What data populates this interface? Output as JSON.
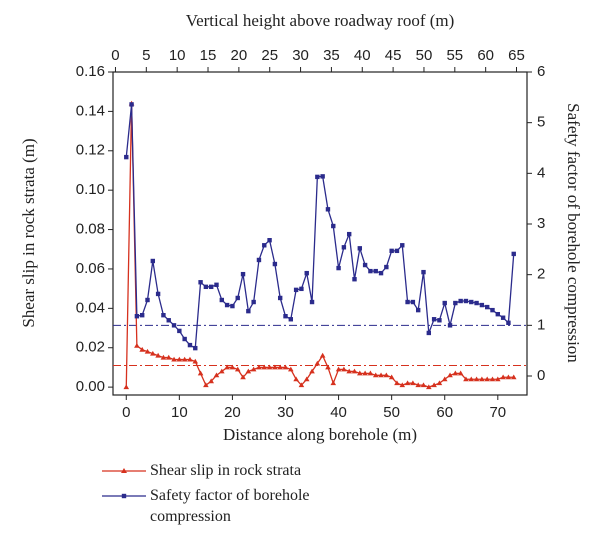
{
  "chart_data": {
    "type": "line",
    "xlabel": "Distance along borehole (m)",
    "x2label": "Vertical height above roadway roof (m)",
    "ylabel": "Shear slip in rock strata (m)",
    "y2label": "Safety factor of borehole compression",
    "xlim": [
      -2.5,
      75.5
    ],
    "xticks": [
      0,
      10,
      20,
      30,
      40,
      50,
      60,
      70
    ],
    "x2lim": [
      -0.4,
      66.7
    ],
    "x2ticks": [
      0,
      5,
      10,
      15,
      20,
      25,
      30,
      35,
      40,
      45,
      50,
      55,
      60,
      65
    ],
    "ylim": [
      -0.004,
      0.16
    ],
    "yticks": [
      {
        "value": 0,
        "label": "0.00"
      },
      0.02,
      0.04,
      0.06,
      0.08,
      {
        "value": 0.1,
        "label": "0.10"
      },
      0.12,
      0.14,
      0.16
    ],
    "y2lim": [
      -0.375,
      6
    ],
    "y2ticks": [
      0,
      1,
      2,
      3,
      4,
      5,
      6
    ],
    "x": [
      0,
      1,
      2,
      3,
      4,
      5,
      6,
      7,
      8,
      9,
      10,
      11,
      12,
      13,
      14,
      15,
      16,
      17,
      18,
      19,
      20,
      21,
      22,
      23,
      24,
      25,
      26,
      27,
      28,
      29,
      30,
      31,
      32,
      33,
      34,
      35,
      36,
      37,
      38,
      39,
      40,
      41,
      42,
      43,
      44,
      45,
      46,
      47,
      48,
      49,
      50,
      51,
      52,
      53,
      54,
      55,
      56,
      57,
      58,
      59,
      60,
      61,
      62,
      63,
      64,
      65,
      66,
      67,
      68,
      69,
      70,
      71,
      72,
      73
    ],
    "series": [
      {
        "name": "Shear slip in rock strata",
        "color": "#d6311e",
        "marker": "triangle",
        "values": [
          0.0,
          0.144,
          0.021,
          0.019,
          0.018,
          0.017,
          0.016,
          0.015,
          0.015,
          0.014,
          0.014,
          0.014,
          0.014,
          0.013,
          0.007,
          0.001,
          0.003,
          0.006,
          0.008,
          0.01,
          0.01,
          0.009,
          0.005,
          0.008,
          0.009,
          0.01,
          0.01,
          0.01,
          0.01,
          0.01,
          0.01,
          0.009,
          0.004,
          0.001,
          0.004,
          0.008,
          0.012,
          0.016,
          0.01,
          0.002,
          0.009,
          0.009,
          0.008,
          0.008,
          0.007,
          0.007,
          0.007,
          0.006,
          0.006,
          0.006,
          0.005,
          0.002,
          0.001,
          0.002,
          0.002,
          0.001,
          0.001,
          0.0,
          0.001,
          0.002,
          0.004,
          0.006,
          0.007,
          0.007,
          0.004,
          0.004,
          0.004,
          0.004,
          0.004,
          0.004,
          0.004,
          0.005,
          0.005,
          0.005
        ]
      },
      {
        "name": "Safety factor of borehole compression",
        "color": "#2b2b8c",
        "marker": "square",
        "axis": "y2",
        "values": [
          4.32,
          5.36,
          1.18,
          1.2,
          1.5,
          2.27,
          1.62,
          1.2,
          1.1,
          1.0,
          0.89,
          0.73,
          0.61,
          0.55,
          1.85,
          1.76,
          1.76,
          1.8,
          1.5,
          1.4,
          1.38,
          1.54,
          2.01,
          1.28,
          1.46,
          2.29,
          2.58,
          2.68,
          2.21,
          1.54,
          1.18,
          1.12,
          1.7,
          1.72,
          2.03,
          1.46,
          3.93,
          3.94,
          3.29,
          2.96,
          2.13,
          2.54,
          2.8,
          1.91,
          2.52,
          2.19,
          2.07,
          2.07,
          2.03,
          2.15,
          2.47,
          2.47,
          2.58,
          1.46,
          1.46,
          1.3,
          2.05,
          0.85,
          1.12,
          1.1,
          1.44,
          1.0,
          1.44,
          1.48,
          1.48,
          1.46,
          1.44,
          1.4,
          1.36,
          1.3,
          1.22,
          1.15,
          1.05,
          2.41
        ]
      }
    ],
    "hlines": [
      {
        "axis": "y",
        "value": 0.011,
        "color": "#d6311e"
      },
      {
        "axis": "y2",
        "value": 1,
        "color": "#2b2b8c"
      }
    ]
  }
}
